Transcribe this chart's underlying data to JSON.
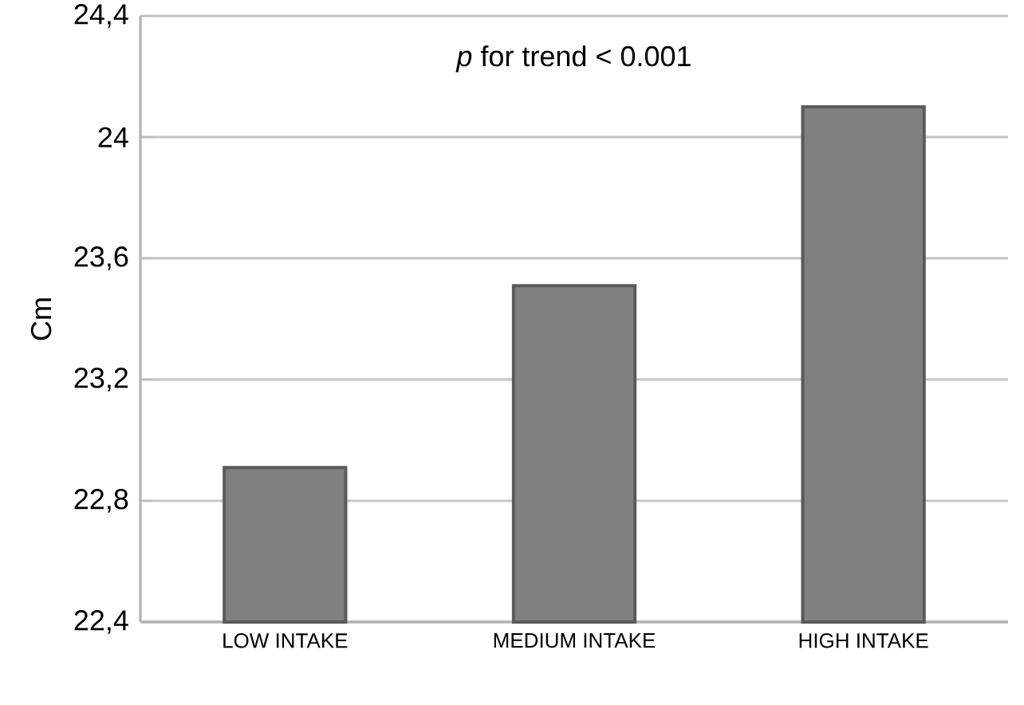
{
  "chart_data": {
    "type": "bar",
    "ylabel": "Cm",
    "categories": [
      "LOW INTAKE",
      "MEDIUM INTAKE",
      "HIGH INTAKE"
    ],
    "values": [
      22.91,
      23.51,
      24.1
    ],
    "color": "#808080",
    "ylim": [
      22.4,
      24.4
    ],
    "yticks": [
      {
        "value": 22.4,
        "label": "22,4"
      },
      {
        "value": 22.8,
        "label": "22,8"
      },
      {
        "value": 23.2,
        "label": "23,2"
      },
      {
        "value": 23.6,
        "label": "23,6"
      },
      {
        "value": 24,
        "label": "24"
      },
      {
        "value": 24.4,
        "label": "24,4"
      }
    ],
    "grid": "y",
    "annotations": [
      "*p* for trend < 0.001"
    ]
  }
}
